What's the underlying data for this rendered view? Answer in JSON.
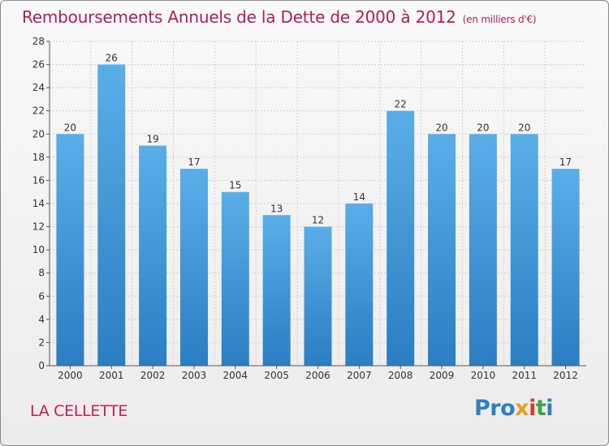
{
  "header": {
    "title": "Remboursements Annuels de la Dette de 2000 à 2012",
    "unit": "(en milliers d'€)"
  },
  "footer": {
    "commune": "LA CELLETTE",
    "logo": {
      "p1": "Pro",
      "p2": "x",
      "p3": "i",
      "p4": "t",
      "p5": "i"
    }
  },
  "colors": {
    "bar_top": "#5aaee8",
    "bar_bottom": "#2a7ec2",
    "title": "#b01e55",
    "grid": "#cfcfcf"
  },
  "chart_data": {
    "type": "bar",
    "title": "Remboursements Annuels de la Dette de 2000 à 2012",
    "xlabel": "",
    "ylabel": "",
    "categories": [
      "2000",
      "2001",
      "2002",
      "2003",
      "2004",
      "2005",
      "2006",
      "2007",
      "2008",
      "2009",
      "2010",
      "2011",
      "2012"
    ],
    "values": [
      20,
      26,
      19,
      17,
      15,
      13,
      12,
      14,
      22,
      20,
      20,
      20,
      17
    ],
    "ylim": [
      0,
      28
    ],
    "yticks": [
      0,
      2,
      4,
      6,
      8,
      10,
      12,
      14,
      16,
      18,
      20,
      22,
      24,
      26,
      28
    ],
    "grid": true,
    "data_labels": true
  }
}
